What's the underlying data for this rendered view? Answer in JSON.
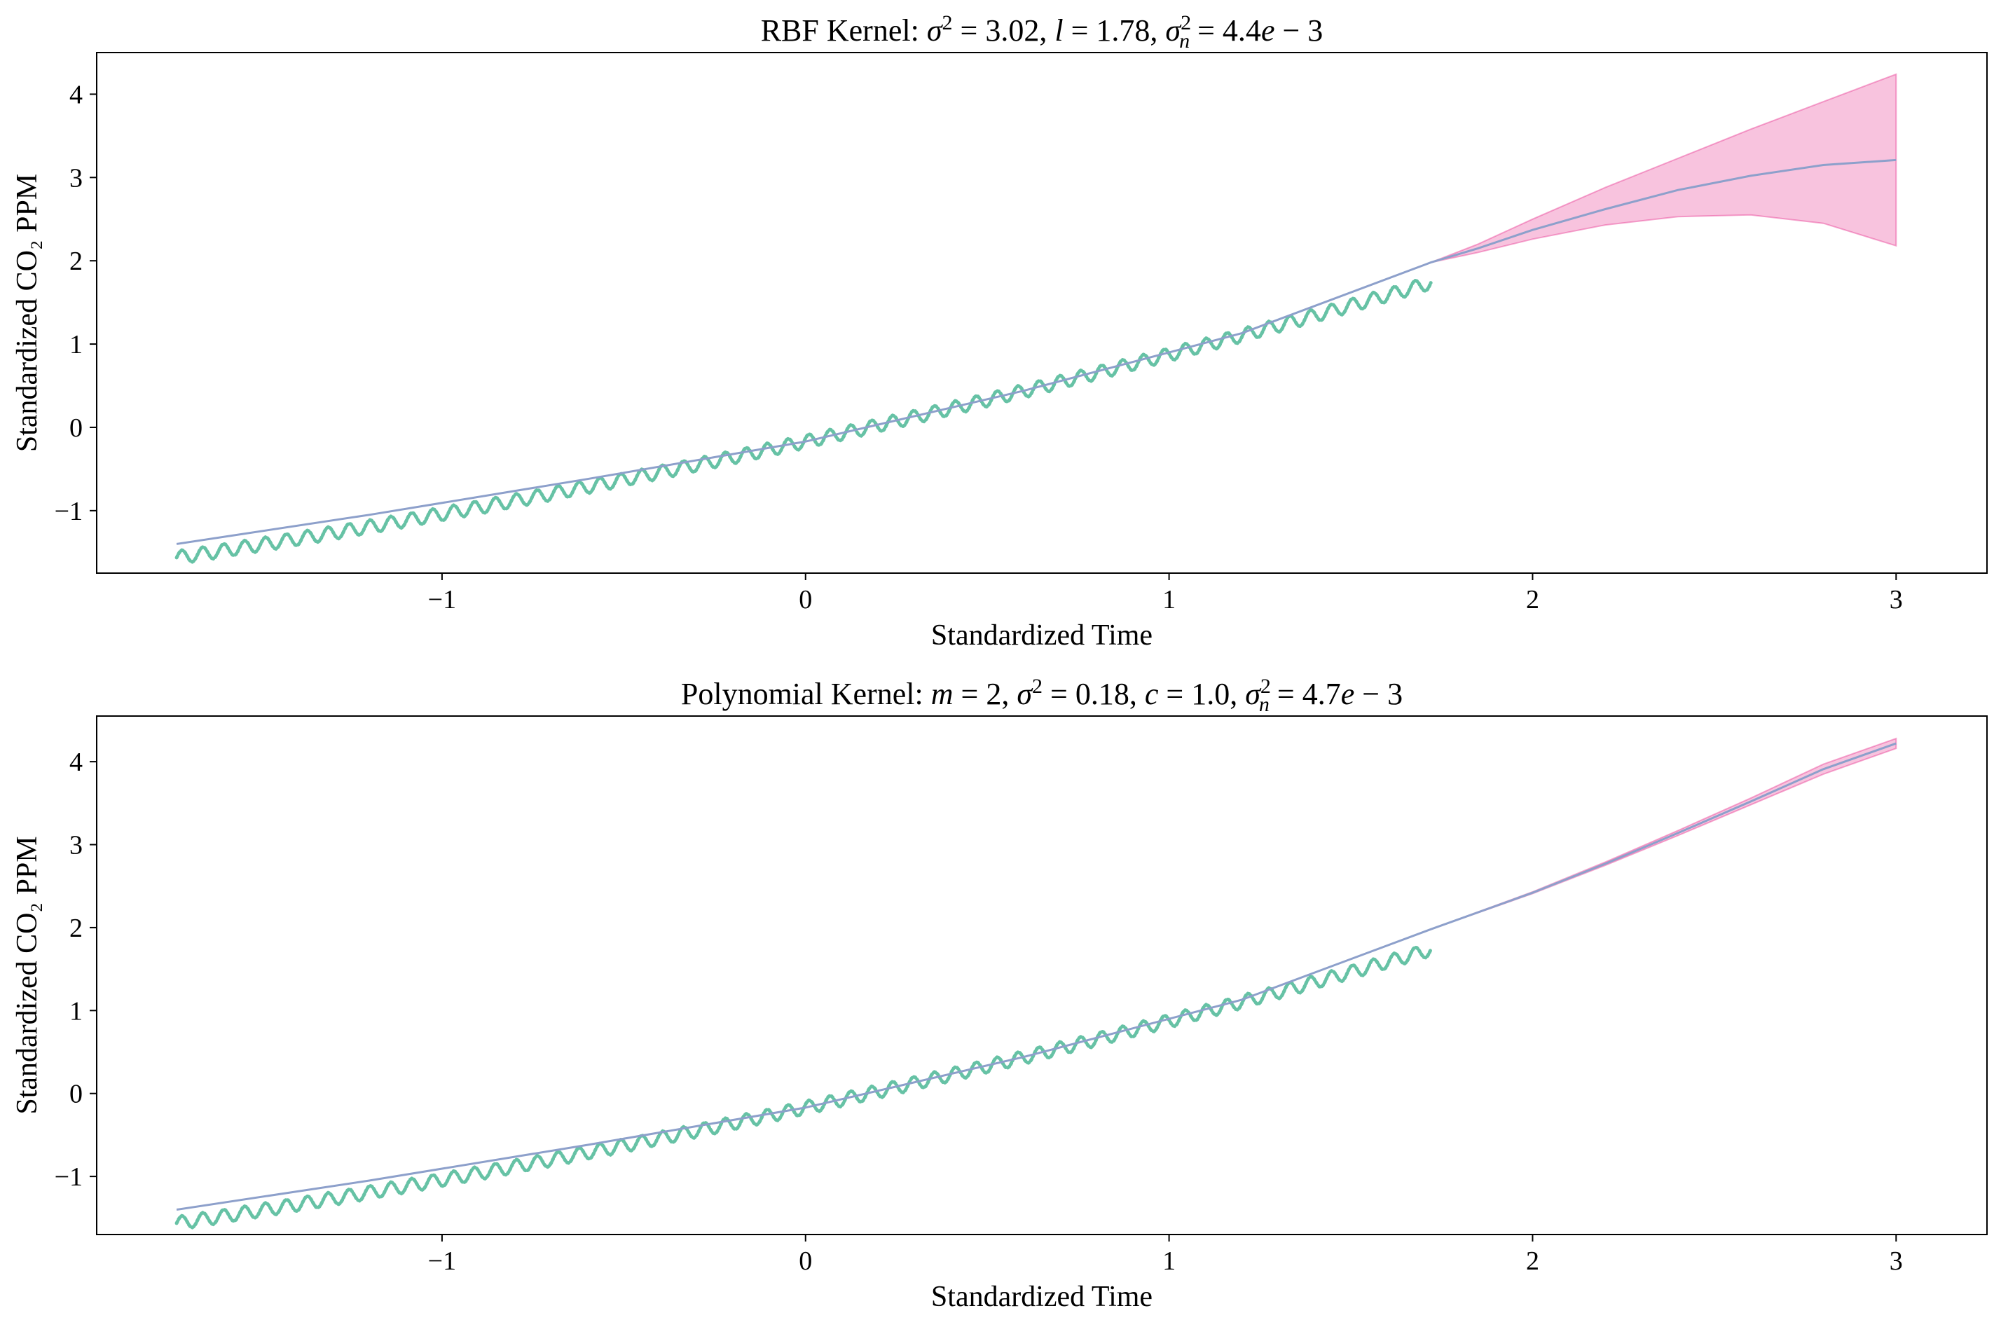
{
  "chart_data": [
    {
      "type": "line",
      "title_prefix": "RBF Kernel: ",
      "title_math": [
        {
          "t": "σ",
          "i": true
        },
        {
          "t": "2",
          "sup": true
        },
        {
          "t": " = 3.02, "
        },
        {
          "t": "l",
          "i": true
        },
        {
          "t": " = 1.78, "
        },
        {
          "t": "σ",
          "i": true
        },
        {
          "t": "2",
          "sup": true
        },
        {
          "t": "n",
          "sub": true,
          "i": true
        },
        {
          "t": " = 4.4"
        },
        {
          "t": "e",
          "i": true
        },
        {
          "t": " − 3"
        }
      ],
      "xlabel": "Standardized Time",
      "ylabel": "Standardized CO₂ PPM",
      "xlim": [
        -1.95,
        3.25
      ],
      "ylim": [
        -1.75,
        4.5
      ],
      "xticks": [
        -1,
        0,
        1,
        2,
        3
      ],
      "xtick_labels": [
        "−1",
        "0",
        "1",
        "2",
        "3"
      ],
      "yticks": [
        -1,
        0,
        1,
        2,
        3,
        4
      ],
      "ytick_labels": [
        "−1",
        "0",
        "1",
        "2",
        "3",
        "4"
      ],
      "observed": {
        "x_range": [
          -1.73,
          1.72
        ],
        "trend_poly": [
          -0.1707,
          0.9573,
          0.0879
        ],
        "seasonal_amplitude": 0.08,
        "cycles": 60,
        "n_points": 720,
        "color": "#66c2a5"
      },
      "prediction": {
        "x": [
          -1.73,
          -1.2,
          -0.6,
          0,
          0.6,
          1.2,
          1.72,
          1.85,
          2.0,
          2.2,
          2.4,
          2.6,
          2.8,
          3.0
        ],
        "mean": [
          -1.4,
          -1.05,
          -0.62,
          -0.17,
          0.44,
          1.13,
          1.98,
          2.15,
          2.37,
          2.62,
          2.85,
          3.02,
          3.15,
          3.21
        ],
        "lower": [
          -1.4,
          -1.05,
          -0.62,
          -0.17,
          0.44,
          1.13,
          1.98,
          2.1,
          2.26,
          2.43,
          2.53,
          2.55,
          2.45,
          2.18
        ],
        "upper": [
          -1.4,
          -1.05,
          -0.62,
          -0.17,
          0.44,
          1.13,
          1.98,
          2.2,
          2.5,
          2.88,
          3.23,
          3.58,
          3.91,
          4.24
        ],
        "line_color": "#8da0cb",
        "band_color": "#e7298a"
      }
    },
    {
      "type": "line",
      "title_prefix": "Polynomial Kernel: ",
      "title_math": [
        {
          "t": "m",
          "i": true
        },
        {
          "t": " = 2, "
        },
        {
          "t": "σ",
          "i": true
        },
        {
          "t": "2",
          "sup": true
        },
        {
          "t": " = 0.18, "
        },
        {
          "t": "c",
          "i": true
        },
        {
          "t": " = 1.0, "
        },
        {
          "t": "σ",
          "i": true
        },
        {
          "t": "2",
          "sup": true
        },
        {
          "t": "n",
          "sub": true,
          "i": true
        },
        {
          "t": " = 4.7"
        },
        {
          "t": "e",
          "i": true
        },
        {
          "t": " − 3"
        }
      ],
      "xlabel": "Standardized Time",
      "ylabel": "Standardized CO₂ PPM",
      "xlim": [
        -1.95,
        3.25
      ],
      "ylim": [
        -1.7,
        4.55
      ],
      "xticks": [
        -1,
        0,
        1,
        2,
        3
      ],
      "xtick_labels": [
        "−1",
        "0",
        "1",
        "2",
        "3"
      ],
      "yticks": [
        -1,
        0,
        1,
        2,
        3,
        4
      ],
      "ytick_labels": [
        "−1",
        "0",
        "1",
        "2",
        "3",
        "4"
      ],
      "observed": {
        "x_range": [
          -1.73,
          1.72
        ],
        "trend_poly": [
          -0.1707,
          0.9573,
          0.0879
        ],
        "seasonal_amplitude": 0.08,
        "cycles": 60,
        "n_points": 720,
        "color": "#66c2a5"
      },
      "prediction": {
        "x": [
          -1.73,
          -1.2,
          -0.6,
          0,
          0.6,
          1.2,
          1.72,
          2.0,
          2.2,
          2.4,
          2.6,
          2.8,
          3.0
        ],
        "mean": [
          -1.4,
          -1.05,
          -0.62,
          -0.17,
          0.44,
          1.13,
          1.98,
          2.42,
          2.77,
          3.14,
          3.52,
          3.91,
          4.22
        ],
        "lower": [
          -1.4,
          -1.05,
          -0.62,
          -0.17,
          0.44,
          1.13,
          1.98,
          2.41,
          2.75,
          3.11,
          3.48,
          3.85,
          4.16
        ],
        "upper": [
          -1.4,
          -1.05,
          -0.62,
          -0.17,
          0.44,
          1.13,
          1.98,
          2.43,
          2.79,
          3.17,
          3.56,
          3.97,
          4.28
        ],
        "line_color": "#8da0cb",
        "band_color": "#e7298a"
      }
    }
  ]
}
